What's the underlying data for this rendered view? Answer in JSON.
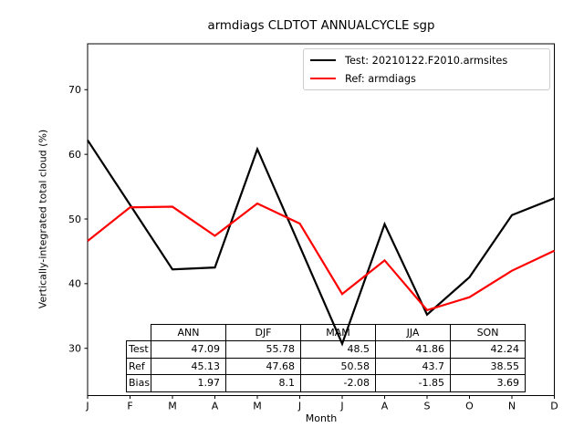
{
  "title": "armdiags CLDTOT ANNUALCYCLE sgp",
  "chart_data": {
    "type": "line",
    "title": "armdiags CLDTOT ANNUALCYCLE sgp",
    "xlabel": "Month",
    "ylabel": "Vertically-integrated total cloud (%)",
    "x": [
      "J",
      "F",
      "M",
      "A",
      "M",
      "J",
      "J",
      "A",
      "S",
      "O",
      "N",
      "D"
    ],
    "yticks": [
      30,
      40,
      50,
      60,
      70
    ],
    "ylim": [
      22.7,
      77.1
    ],
    "grid": false,
    "legend_position": "upper right",
    "series": [
      {
        "name": "Test: 20210122.F2010.armsites",
        "color": "#000000",
        "values": [
          62.2,
          52.2,
          42.2,
          42.5,
          60.8,
          45.8,
          30.7,
          49.2,
          35.2,
          41.0,
          50.6,
          53.2
        ]
      },
      {
        "name": "Ref: armdiags",
        "color": "#ff0000",
        "values": [
          46.6,
          51.8,
          51.9,
          47.4,
          52.4,
          49.3,
          38.4,
          43.6,
          35.9,
          37.9,
          42.0,
          45.1
        ]
      }
    ],
    "stats_table": {
      "columns": [
        "ANN",
        "DJF",
        "MAM",
        "JJA",
        "SON"
      ],
      "rows": [
        {
          "label": "Test",
          "values": [
            "47.09",
            "55.78",
            "48.5",
            "41.86",
            "42.24"
          ]
        },
        {
          "label": "Ref",
          "values": [
            "45.13",
            "47.68",
            "50.58",
            "43.7",
            "38.55"
          ]
        },
        {
          "label": "Bias",
          "values": [
            "1.97",
            "8.1",
            "-2.08",
            "-1.85",
            "3.69"
          ]
        }
      ]
    }
  }
}
